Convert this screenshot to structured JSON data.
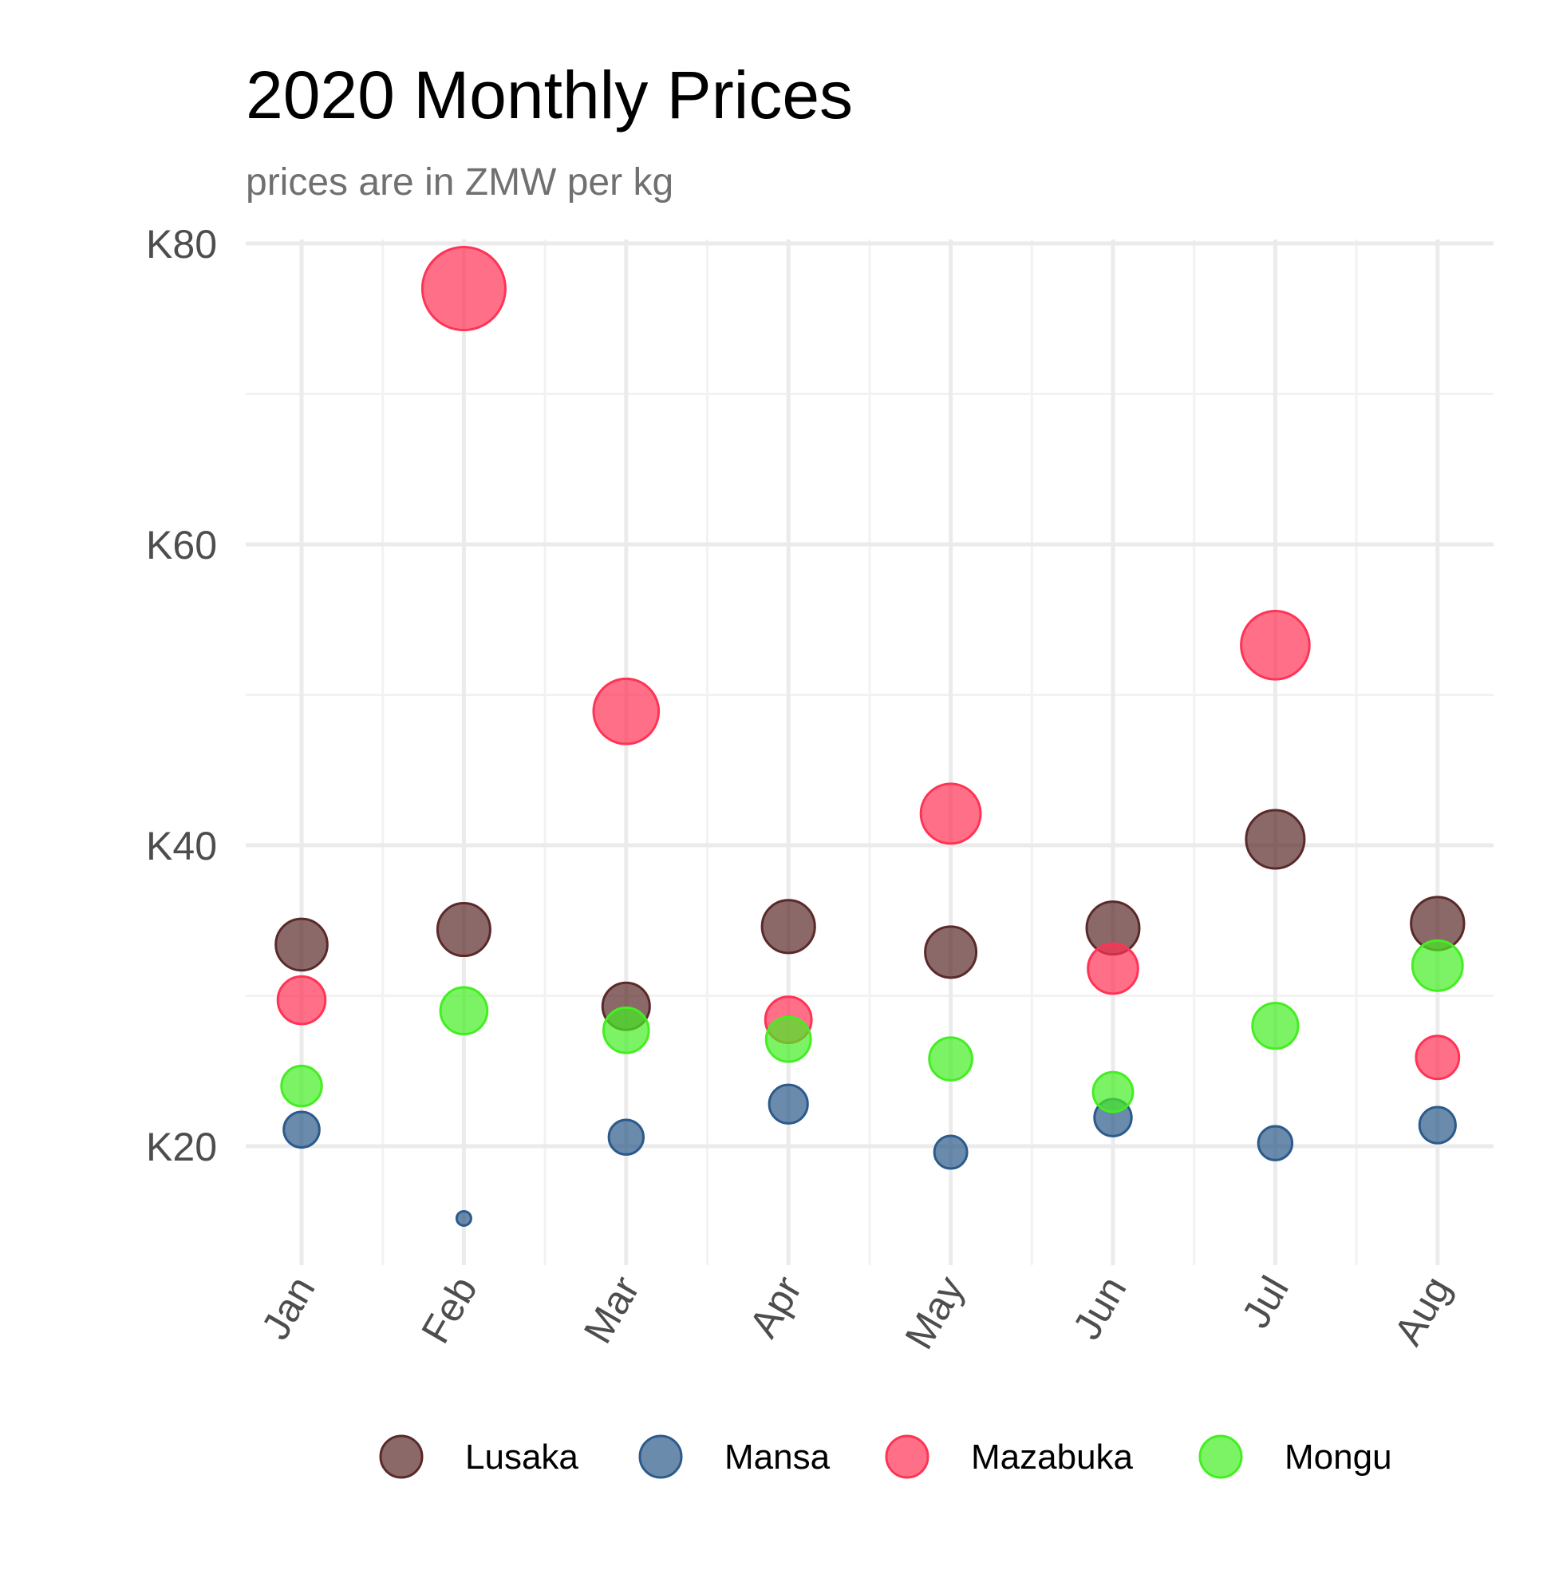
{
  "chart_data": {
    "type": "scatter",
    "title": "2020 Monthly Prices",
    "subtitle": "prices are in ZMW per kg",
    "xlabel": "",
    "ylabel": "",
    "categories": [
      "Jan",
      "Feb",
      "Mar",
      "Apr",
      "May",
      "Jun",
      "Jul",
      "Aug"
    ],
    "y_ticks": [
      20,
      40,
      60,
      80
    ],
    "y_tick_labels": [
      "K20",
      "K40",
      "K60",
      "K80"
    ],
    "ylim": [
      12.2,
      80
    ],
    "grid": true,
    "legend_position": "bottom",
    "point_size_encodes": "price",
    "series": [
      {
        "name": "Lusaka",
        "color": "#5a2a2a",
        "values": [
          33.4,
          34.4,
          29.3,
          34.6,
          32.9,
          34.5,
          40.4,
          34.8
        ]
      },
      {
        "name": "Mansa",
        "color": "#2c5a8a",
        "values": [
          21.1,
          15.2,
          20.6,
          22.8,
          19.6,
          21.9,
          20.2,
          21.4
        ]
      },
      {
        "name": "Mazabuka",
        "color": "#ff3355",
        "values": [
          29.7,
          77.0,
          48.9,
          28.4,
          42.1,
          31.8,
          53.3,
          25.9
        ]
      },
      {
        "name": "Mongu",
        "color": "#44ee22",
        "values": [
          24.0,
          29.0,
          27.7,
          27.1,
          25.8,
          23.6,
          28.0,
          32.0
        ]
      }
    ]
  }
}
